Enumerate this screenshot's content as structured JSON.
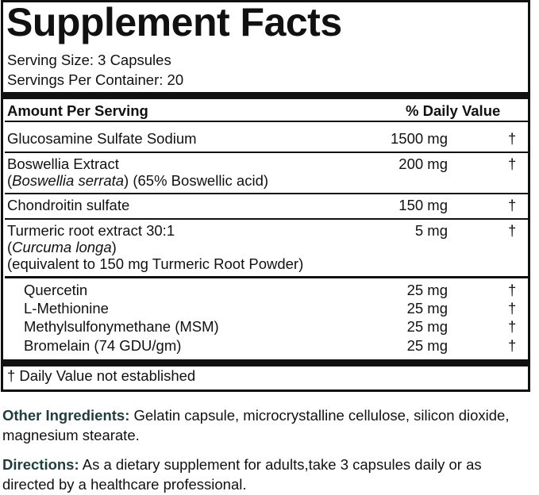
{
  "title": "Supplement Facts",
  "serving_size": "Serving Size: 3 Capsules",
  "servings_per_container": "Servings Per Container: 20",
  "header": {
    "amount": "Amount Per Serving",
    "dv": "% Daily Value"
  },
  "rows": [
    {
      "name": "Glucosamine Sulfate Sodium",
      "amount": "1500 mg",
      "dv": "†"
    },
    {
      "name": "Boswellia Extract",
      "sub_italic": "Boswellia serrata",
      "sub_rest": " (65% Boswellic acid)",
      "amount": "200 mg",
      "dv": "†"
    },
    {
      "name": "Chondroitin sulfate",
      "amount": "150 mg",
      "dv": "†"
    },
    {
      "name": "Turmeric root extract 30:1",
      "sub_italic": "Curcuma longa",
      "line3": "(equivalent to 150 mg Turmeric Root Powder)",
      "amount": "5 mg",
      "dv": "†"
    }
  ],
  "subrows": [
    {
      "name": "Quercetin",
      "amount": "25 mg",
      "dv": "†"
    },
    {
      "name": "L-Methionine",
      "amount": "25 mg",
      "dv": "†"
    },
    {
      "name": "Methylsulfonymethane (MSM)",
      "amount": "25 mg",
      "dv": "†"
    },
    {
      "name": "Bromelain (74 GDU/gm)",
      "amount": "25 mg",
      "dv": "†"
    }
  ],
  "footnote": "† Daily Value not established",
  "other": {
    "label": "Other Ingredients:",
    "text": " Gelatin capsule, microcrystalline cellulose, silicon dioxide, magnesium stearate."
  },
  "directions": {
    "label": "Directions:",
    "text": " As a dietary supplement for adults,take 3 capsules daily or as directed by a healthcare professional."
  },
  "colors": {
    "label": "#1f3d3d"
  }
}
